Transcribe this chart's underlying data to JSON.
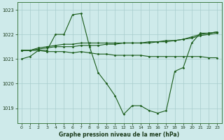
{
  "title": "Graphe pression niveau de la mer (hPa)",
  "bg_color": "#ceeaea",
  "grid_color": "#a8cccc",
  "line_color": "#1a5c1a",
  "xlim": [
    -0.5,
    23.5
  ],
  "ylim": [
    1018.4,
    1023.3
  ],
  "yticks": [
    1019,
    1020,
    1021,
    1022,
    1023
  ],
  "xticks": [
    0,
    1,
    2,
    3,
    4,
    5,
    6,
    7,
    8,
    9,
    10,
    11,
    12,
    13,
    14,
    15,
    16,
    17,
    18,
    19,
    20,
    21,
    22,
    23
  ],
  "series": [
    {
      "x": [
        0,
        1,
        2,
        3,
        4,
        5,
        6,
        7,
        8,
        9,
        10,
        11,
        12,
        13,
        14,
        15,
        16,
        17,
        18,
        19,
        20,
        21,
        22,
        23
      ],
      "y": [
        1021.35,
        1021.35,
        1021.35,
        1021.3,
        1021.3,
        1021.3,
        1021.25,
        1021.3,
        1021.25,
        1021.2,
        1021.2,
        1021.15,
        1021.15,
        1021.15,
        1021.15,
        1021.1,
        1021.1,
        1021.1,
        1021.1,
        1021.1,
        1021.1,
        1021.1,
        1021.05,
        1021.05
      ]
    },
    {
      "x": [
        0,
        1,
        2,
        3,
        4,
        5,
        6,
        7,
        8,
        9,
        10,
        11,
        12,
        13,
        14,
        15,
        16,
        17,
        18,
        19,
        20,
        21,
        22,
        23
      ],
      "y": [
        1021.35,
        1021.35,
        1021.4,
        1021.45,
        1021.5,
        1021.5,
        1021.5,
        1021.55,
        1021.55,
        1021.55,
        1021.6,
        1021.6,
        1021.65,
        1021.65,
        1021.65,
        1021.7,
        1021.7,
        1021.75,
        1021.75,
        1021.8,
        1021.85,
        1021.95,
        1022.0,
        1022.05
      ]
    },
    {
      "x": [
        0,
        1,
        2,
        3,
        4,
        5,
        6,
        7,
        8,
        9,
        10,
        11,
        12,
        13,
        14,
        15,
        16,
        17,
        18,
        19,
        20,
        21,
        22,
        23
      ],
      "y": [
        1021.35,
        1021.35,
        1021.45,
        1021.5,
        1021.55,
        1021.6,
        1021.6,
        1021.65,
        1021.65,
        1021.65,
        1021.65,
        1021.65,
        1021.65,
        1021.65,
        1021.65,
        1021.65,
        1021.7,
        1021.7,
        1021.75,
        1021.8,
        1021.9,
        1022.0,
        1022.05,
        1022.1
      ]
    },
    {
      "x": [
        0,
        1,
        2,
        3,
        4,
        5,
        6,
        7,
        8,
        9,
        10,
        11,
        12,
        13,
        14,
        15,
        16,
        17,
        18,
        19,
        20,
        21,
        22,
        23
      ],
      "y": [
        1021.0,
        1021.1,
        1021.35,
        1021.35,
        1022.0,
        1022.0,
        1022.8,
        1022.85,
        1021.5,
        1020.45,
        1020.0,
        1019.5,
        1018.75,
        1019.1,
        1019.1,
        1018.9,
        1018.8,
        1018.9,
        1020.5,
        1020.65,
        1021.65,
        1022.05,
        1022.05,
        1022.1
      ]
    }
  ]
}
